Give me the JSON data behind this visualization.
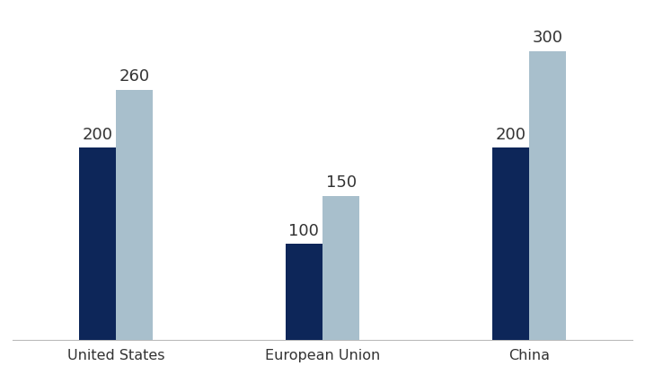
{
  "categories": [
    "United States",
    "European Union",
    "China"
  ],
  "series1_values": [
    200,
    100,
    200
  ],
  "series2_values": [
    260,
    150,
    300
  ],
  "series1_color": "#0d2659",
  "series2_color": "#a8bfcc",
  "bar_width": 0.18,
  "ylim": [
    0,
    340
  ],
  "label_fontsize": 13,
  "tick_fontsize": 11.5,
  "label_color": "#333333",
  "background_color": "#ffffff",
  "spine_color": "#bbbbbb"
}
